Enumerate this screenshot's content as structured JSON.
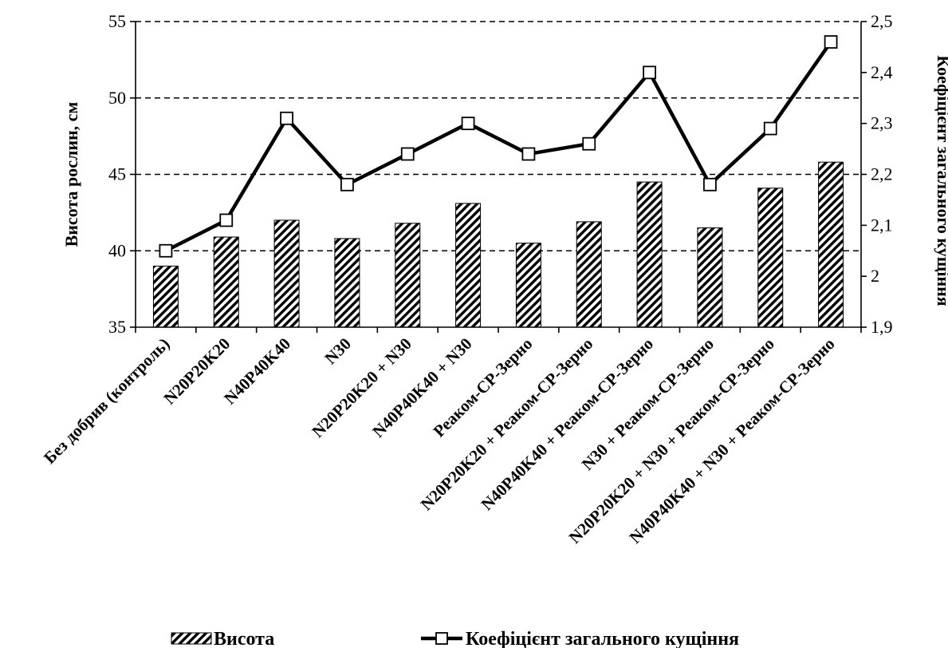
{
  "chart_data": {
    "type": "bar",
    "categories": [
      "Без добрив (контроль)",
      "N20P20K20",
      "N40P40K40",
      "N30",
      "N20P20K20 + N30",
      "N40P40K40 + N30",
      "Реаком-СР-Зерно",
      "N20P20K20 + Реаком-СР-Зерно",
      "N40P40K40 + Реаком-СР-Зерно",
      "N30 + Реаком-СР-Зерно",
      "N20P20K20 + N30 + Реаком-СР-Зерно",
      "N40P40K40 + N30 + Реаком-СР-Зерно"
    ],
    "series": [
      {
        "name": "Висота",
        "type": "bar",
        "axis": "left",
        "values": [
          39.0,
          40.9,
          42.0,
          40.8,
          41.8,
          43.1,
          40.5,
          41.9,
          44.5,
          41.5,
          44.1,
          45.8
        ]
      },
      {
        "name": "Коефіцієнт загального кущіння",
        "type": "line",
        "axis": "right",
        "marker": "square",
        "values": [
          2.05,
          2.11,
          2.31,
          2.18,
          2.24,
          2.3,
          2.24,
          2.26,
          2.4,
          2.18,
          2.29,
          2.46
        ]
      }
    ],
    "ylabel": "Висота рослин, см",
    "ylim": [
      35,
      55
    ],
    "yticks": [
      35,
      40,
      45,
      50,
      55
    ],
    "ytick_labels": [
      "35",
      "40",
      "45",
      "50",
      "55"
    ],
    "y2label": "Коефіцієнт загального кущіння",
    "y2lim": [
      1.9,
      2.5
    ],
    "y2ticks": [
      1.9,
      2.0,
      2.1,
      2.2,
      2.3,
      2.4,
      2.5
    ],
    "y2tick_labels": [
      "1,9",
      "2",
      "2,1",
      "2,2",
      "2,3",
      "2,4",
      "2,5"
    ],
    "grid": "dashed horizontal at major left-axis ticks",
    "legend_position": "bottom",
    "colors": {
      "bar_fill": "#000000",
      "bar_background": "#ffffff",
      "line": "#000000",
      "marker_fill": "#ffffff"
    }
  }
}
